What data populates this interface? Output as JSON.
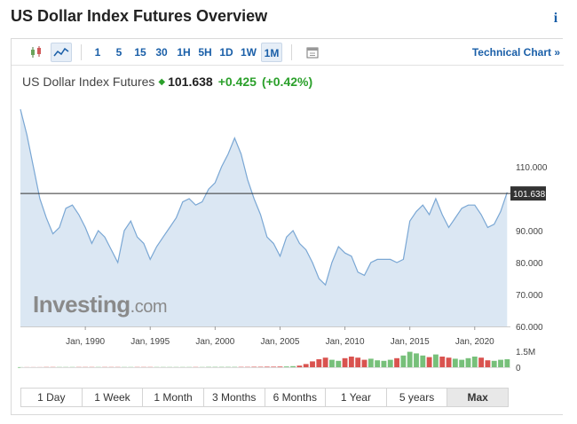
{
  "page": {
    "title": "US Dollar Index Futures Overview"
  },
  "toolbar": {
    "intervals": [
      "1",
      "5",
      "15",
      "30",
      "1H",
      "5H",
      "1D",
      "1W",
      "1M"
    ],
    "active_interval": "1M",
    "technical_link": "Technical Chart »"
  },
  "quote": {
    "name": "US Dollar Index Futures",
    "price": "101.638",
    "change": "+0.425",
    "change_pct": "(+0.42%)",
    "up_color": "#2ba02b"
  },
  "watermark": {
    "brand": "Investing",
    "suffix": ".com"
  },
  "ranges": [
    "1 Day",
    "1 Week",
    "1 Month",
    "3 Months",
    "6 Months",
    "1 Year",
    "5 years",
    "Max"
  ],
  "active_range": "Max",
  "chart_data": {
    "type": "area",
    "x": [
      1985.0,
      1985.5,
      1986.0,
      1986.5,
      1987.0,
      1987.5,
      1988.0,
      1988.5,
      1989.0,
      1989.5,
      1990.0,
      1990.5,
      1991.0,
      1991.5,
      1992.0,
      1992.5,
      1993.0,
      1993.5,
      1994.0,
      1994.5,
      1995.0,
      1995.5,
      1996.0,
      1996.5,
      1997.0,
      1997.5,
      1998.0,
      1998.5,
      1999.0,
      1999.5,
      2000.0,
      2000.5,
      2001.0,
      2001.5,
      2002.0,
      2002.5,
      2003.0,
      2003.5,
      2004.0,
      2004.5,
      2005.0,
      2005.5,
      2006.0,
      2006.5,
      2007.0,
      2007.5,
      2008.0,
      2008.5,
      2009.0,
      2009.5,
      2010.0,
      2010.5,
      2011.0,
      2011.5,
      2012.0,
      2012.5,
      2013.0,
      2013.5,
      2014.0,
      2014.5,
      2015.0,
      2015.5,
      2016.0,
      2016.5,
      2017.0,
      2017.5,
      2018.0,
      2018.5,
      2019.0,
      2019.5,
      2020.0,
      2020.5,
      2021.0,
      2021.5,
      2022.0,
      2022.5
    ],
    "series": [
      {
        "values": [
          128,
          120,
          110,
          100,
          94,
          89,
          91,
          97,
          98,
          95,
          91,
          86,
          90,
          88,
          84,
          80,
          90,
          93,
          88,
          86,
          81,
          85,
          88,
          91,
          94,
          99,
          100,
          98,
          99,
          103,
          105,
          110,
          114,
          119,
          114,
          106,
          100,
          95,
          88,
          86,
          82,
          88,
          90,
          86,
          84,
          80,
          75,
          73,
          80,
          85,
          83,
          82,
          77,
          76,
          80,
          81,
          81,
          81,
          80,
          81,
          93,
          96,
          98,
          95,
          100,
          95,
          91,
          94,
          97,
          98,
          98,
          95,
          91,
          92,
          96,
          102
        ]
      }
    ],
    "volume": [
      0.01,
      0.01,
      0.01,
      0.01,
      0.02,
      0.02,
      0.02,
      0.02,
      0.02,
      0.02,
      0.02,
      0.02,
      0.02,
      0.02,
      0.02,
      0.02,
      0.02,
      0.02,
      0.02,
      0.02,
      0.02,
      0.02,
      0.02,
      0.02,
      0.02,
      0.02,
      0.02,
      0.02,
      0.02,
      0.03,
      0.03,
      0.03,
      0.03,
      0.03,
      0.03,
      0.03,
      0.04,
      0.04,
      0.05,
      0.05,
      0.06,
      0.07,
      0.1,
      0.15,
      0.3,
      0.55,
      0.75,
      0.9,
      0.7,
      0.6,
      0.85,
      1.0,
      0.9,
      0.7,
      0.8,
      0.65,
      0.6,
      0.7,
      0.85,
      1.1,
      1.45,
      1.3,
      1.1,
      0.95,
      1.2,
      1.0,
      0.9,
      0.8,
      0.7,
      0.85,
      1.0,
      0.9,
      0.65,
      0.6,
      0.7,
      0.75
    ],
    "current": 101.638,
    "ylim": [
      60,
      130
    ],
    "y_ticks": [
      "110.000",
      "90.000",
      "80.000",
      "70.000",
      "60.000"
    ],
    "y_tick_values": [
      110,
      90,
      80,
      70,
      60
    ],
    "x_ticks": [
      "Jan, 1990",
      "Jan, 1995",
      "Jan, 2000",
      "Jan, 2005",
      "Jan, 2010",
      "Jan, 2015",
      "Jan, 2020"
    ],
    "x_tick_values": [
      1990,
      1995,
      2000,
      2005,
      2010,
      2015,
      2020
    ],
    "xlim": [
      1985.0,
      2022.75
    ],
    "volume_ticks": [
      "1.5M",
      "0"
    ],
    "volume_tick_values": [
      1.5,
      0
    ],
    "volume_max": 1.5,
    "colors": {
      "line": "#7aa7d4",
      "area": "#dbe7f3",
      "current_line": "#333333",
      "label_bg": "#333333",
      "vol_up": "#77c07a",
      "vol_down": "#d9534f"
    }
  }
}
